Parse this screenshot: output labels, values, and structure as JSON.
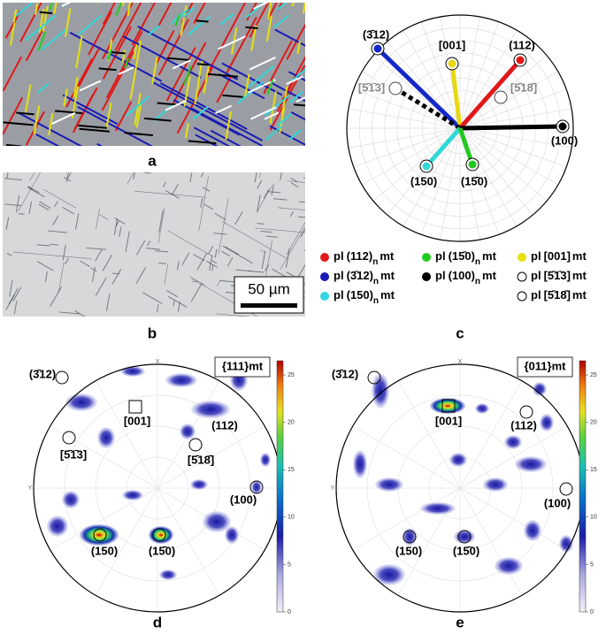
{
  "panel_labels": [
    "a",
    "b",
    "c",
    "d",
    "e"
  ],
  "scale_bar": "50 µm",
  "projection": {
    "labels": [
      "(3̄12)",
      "[001]",
      "(112)",
      "[5̄1̄3]",
      "[5̄18̄]",
      "(100)",
      "(150)",
      "(15̄0)"
    ],
    "colors": [
      "#1428c8",
      "#e8d814",
      "#e01818",
      "#000000",
      "#888888",
      "#000000",
      "#30d8d8",
      "#20c820"
    ]
  },
  "legend": [
    {
      "color": "#e41a1c",
      "marker": "filled",
      "prefix": "pl",
      "plane": "(112)",
      "sub": "n",
      "suffix": "mt"
    },
    {
      "color": "#22cc22",
      "marker": "filled",
      "prefix": "pl",
      "plane": "(15̄0)",
      "sub": "n",
      "suffix": "mt"
    },
    {
      "color": "#e8e010",
      "marker": "filled",
      "prefix": "pl",
      "plane": "[001]",
      "suffix": "mt"
    },
    {
      "color": "#1a1ab4",
      "marker": "filled",
      "prefix": "pl",
      "plane": "(3̄12)",
      "sub": "n",
      "suffix": "mt"
    },
    {
      "color": "#000000",
      "marker": "filled",
      "prefix": "pl",
      "plane": "(100)",
      "sub": "n",
      "suffix": "mt"
    },
    {
      "color": "#000000",
      "marker": "open",
      "prefix": "pl",
      "plane": "[5̄1̄3]",
      "suffix": "mt"
    },
    {
      "color": "#30d8e0",
      "marker": "filled",
      "prefix": "pl",
      "plane": "(150)",
      "sub": "n",
      "suffix": "mt"
    },
    {
      "color": "#000000",
      "marker": "open",
      "prefix": "pl",
      "plane": "[5̄18̄]",
      "suffix": "mt"
    }
  ],
  "pole_figures": [
    {
      "title": "{111}mt",
      "axis_x": "X",
      "axis_y": "Y",
      "labels": [
        "(3̄12)",
        "[001]",
        "(112)",
        "[5̄1̄3]",
        "[5̄18̄]",
        "(100)",
        "(150)",
        "(15̄0)"
      ],
      "colorbar_lim": [
        0,
        26.5
      ],
      "colorbar_ticks": [
        0,
        5,
        10,
        15,
        20,
        25
      ]
    },
    {
      "title": "{011}mt",
      "axis_x": "X",
      "axis_y": "Y",
      "labels": [
        "(3̄12)",
        "[001]",
        "(112)",
        "(100)",
        "(150)",
        "(15̄0)"
      ],
      "colorbar_lim": [
        0,
        26.5
      ],
      "colorbar_ticks": [
        0,
        5,
        10,
        15,
        20,
        25
      ]
    }
  ]
}
